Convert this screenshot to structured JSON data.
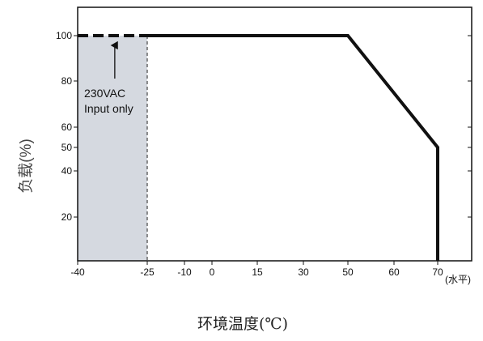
{
  "chart_data": {
    "type": "line",
    "xlabel": "环境温度(℃)",
    "ylabel": "负载(%)",
    "x_unit_note": "(水平)",
    "x_ticks": [
      -40,
      -25,
      -10,
      0,
      15,
      30,
      50,
      60,
      70
    ],
    "y_ticks": [
      20,
      40,
      50,
      60,
      80,
      100
    ],
    "xlim": [
      -40,
      70
    ],
    "ylim": [
      0,
      113
    ],
    "grid": false,
    "series": [
      {
        "style": "dashed",
        "color": "#111111",
        "points": [
          {
            "x": -40,
            "y": 100
          },
          {
            "x": -25,
            "y": 100
          }
        ]
      },
      {
        "style": "solid",
        "color": "#111111",
        "points": [
          {
            "x": -25,
            "y": 100
          },
          {
            "x": 50,
            "y": 100
          },
          {
            "x": 70,
            "y": 50
          },
          {
            "x": 70,
            "y": 0
          }
        ]
      }
    ],
    "shaded_region": {
      "x_from": -40,
      "x_to": -25,
      "color": "#d5d9e0"
    },
    "annotation": {
      "lines": [
        "230VAC",
        "Input only"
      ],
      "points_to": {
        "x": -32,
        "y": 100
      }
    }
  }
}
